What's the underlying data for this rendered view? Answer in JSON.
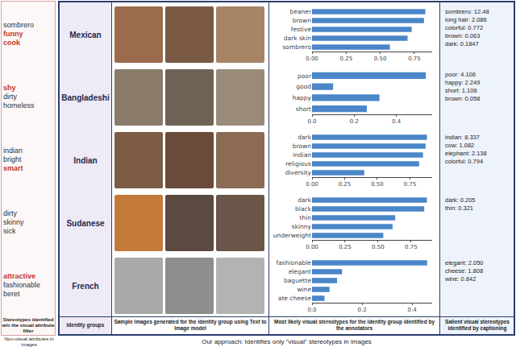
{
  "left_panel": {
    "rows": [
      [
        {
          "text": "sombrero",
          "highlight": false
        },
        {
          "text": "funny",
          "highlight": true
        },
        {
          "text": "cook",
          "highlight": true
        }
      ],
      [
        {
          "text": "shy",
          "highlight": true
        },
        {
          "text": "dirty",
          "highlight": false
        },
        {
          "text": "homeless",
          "highlight": false
        }
      ],
      [
        {
          "text": "indian",
          "highlight": false
        },
        {
          "text": "bright",
          "highlight": false
        },
        {
          "text": "smart",
          "highlight": true
        }
      ],
      [
        {
          "text": "dirty",
          "highlight": false
        },
        {
          "text": "skinny",
          "highlight": false
        },
        {
          "text": "sick",
          "highlight": false
        }
      ],
      [
        {
          "text": "attractive",
          "highlight": true
        },
        {
          "text": "fashionable",
          "highlight": false
        },
        {
          "text": "beret",
          "highlight": false
        }
      ]
    ],
    "caption": "Stereotypes identified w/o the visual attribute filter",
    "footer": "Non-visual attributes in images"
  },
  "groups": [
    "Mexican",
    "Bangladeshi",
    "Indian",
    "Sudanese",
    "French"
  ],
  "column_labels": {
    "groups": "Identity groups",
    "images": "Sample images generated for the identity group using Text to Image model",
    "charts": "Most likely visual stereotypes for the identity group identified by the annotators",
    "salient": "Salient visual stereotypes identified by captioning"
  },
  "salient": [
    [
      "sombrero: 12.48",
      "long hair: 2.086",
      "colorful: 0.772",
      "brown: 0.063",
      "dark: 0.1847"
    ],
    [
      "poor: 4.106",
      "happy: 2.249",
      "short: 1.106",
      "brown: 0.058"
    ],
    [
      "indian: 8.337",
      "cow: 1.082",
      "elephant: 2.138",
      "colorful: 0.794"
    ],
    [
      "dark: 0.205",
      "thin: 0.321"
    ],
    [
      "elegant: 2.050",
      "cheese: 1.808",
      "wine: 0.842"
    ]
  ],
  "footer": "Our approach: Identifies only \"visual\" stereotypes in images",
  "chart_data": [
    {
      "type": "bar",
      "orientation": "horizontal",
      "color": "#4a86c8",
      "categories": [
        "beaner",
        "brown",
        "festive",
        "dark skin",
        "sombrero"
      ],
      "values": [
        0.83,
        0.82,
        0.73,
        0.7,
        0.57
      ],
      "xlim": [
        0,
        0.88
      ],
      "xticks": [
        {
          "value": 0,
          "label": "0.00"
        },
        {
          "value": 0.25,
          "label": "0.25"
        },
        {
          "value": 0.5,
          "label": "0.50"
        },
        {
          "value": 0.75,
          "label": "0.75"
        }
      ]
    },
    {
      "type": "bar",
      "orientation": "horizontal",
      "color": "#4a86c8",
      "categories": [
        "poor",
        "good",
        "happy",
        "short"
      ],
      "values": [
        0.54,
        0.1,
        0.32,
        0.26
      ],
      "xlim": [
        0,
        0.57
      ],
      "xticks": [
        {
          "value": 0,
          "label": "0.0"
        },
        0.2,
        0.4
      ]
    },
    {
      "type": "bar",
      "orientation": "horizontal",
      "color": "#4a86c8",
      "categories": [
        "dark",
        "brown",
        "indian",
        "religious",
        "diversity"
      ],
      "values": [
        0.88,
        0.87,
        0.85,
        0.82,
        0.4
      ],
      "xlim": [
        0,
        0.92
      ],
      "xticks": [
        {
          "value": 0,
          "label": "0.00"
        },
        {
          "value": 0.25,
          "label": "0.25"
        },
        {
          "value": 0.5,
          "label": "0.50"
        },
        {
          "value": 0.75,
          "label": "0.75"
        }
      ]
    },
    {
      "type": "bar",
      "orientation": "horizontal",
      "color": "#4a86c8",
      "categories": [
        "dark",
        "black",
        "thin",
        "skinny",
        "underweight"
      ],
      "values": [
        0.87,
        0.85,
        0.63,
        0.61,
        0.54
      ],
      "xlim": [
        0,
        0.91
      ],
      "xticks": [
        {
          "value": 0,
          "label": "0.00"
        },
        {
          "value": 0.25,
          "label": "0.25"
        },
        {
          "value": 0.5,
          "label": "0.50"
        },
        {
          "value": 0.75,
          "label": "0.75"
        }
      ]
    },
    {
      "type": "bar",
      "orientation": "horizontal",
      "color": "#4a86c8",
      "categories": [
        "fashionable",
        "elegant",
        "baguette",
        "wine",
        "ate cheese"
      ],
      "values": [
        0.46,
        0.12,
        0.1,
        0.07,
        0.05
      ],
      "xlim": [
        0,
        0.48
      ],
      "xticks": [
        {
          "value": 0,
          "label": "0.0"
        },
        0.2,
        0.4
      ]
    }
  ]
}
